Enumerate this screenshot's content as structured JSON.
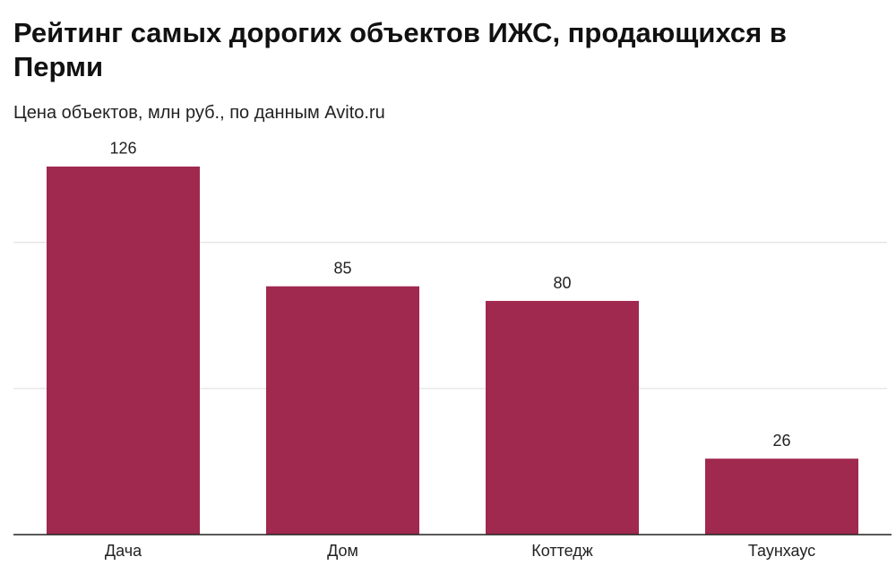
{
  "chart_data": {
    "type": "bar",
    "title": "Рейтинг самых дорогих объектов ИЖС, продающихся в Перми",
    "subtitle": "Цена объектов, млн руб., по данным Avito.ru",
    "categories": [
      "Дача",
      "Дом",
      "Коттедж",
      "Таунхаус"
    ],
    "values": [
      126,
      85,
      80,
      26
    ],
    "color": "#a0294f",
    "ylim": [
      0,
      130
    ],
    "yticks": [
      0,
      50,
      100
    ],
    "ytick_labels": false,
    "grid": true
  }
}
